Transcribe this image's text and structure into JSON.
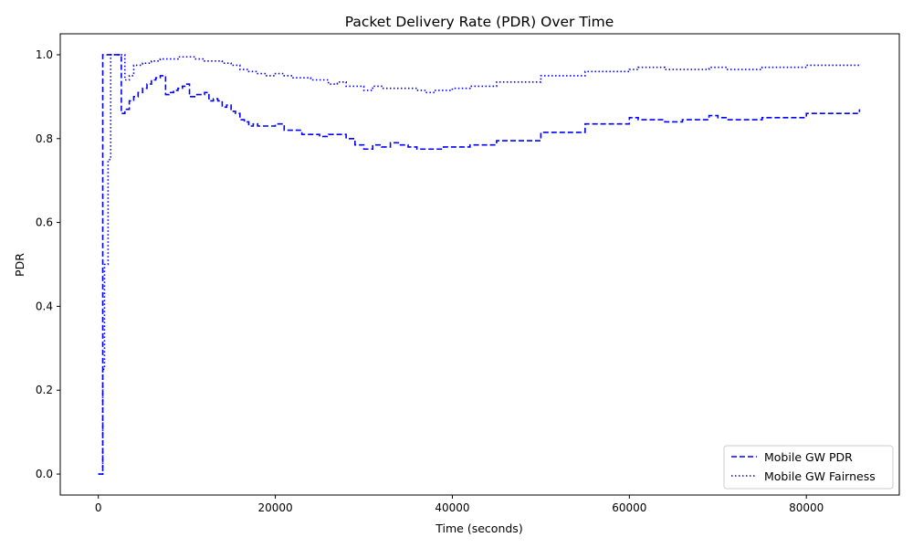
{
  "chart_data": {
    "type": "line",
    "title": "Packet Delivery Rate (PDR) Over Time",
    "xlabel": "Time (seconds)",
    "ylabel": "PDR",
    "xlim": [
      -4300,
      90500
    ],
    "ylim": [
      -0.05,
      1.05
    ],
    "xticks": [
      0,
      20000,
      40000,
      60000,
      80000
    ],
    "yticks": [
      0.0,
      0.2,
      0.4,
      0.6,
      0.8,
      1.0
    ],
    "xtick_labels": [
      "0",
      "20000",
      "40000",
      "60000",
      "80000"
    ],
    "ytick_labels": [
      "0.0",
      "0.2",
      "0.4",
      "0.6",
      "0.8",
      "1.0"
    ],
    "grid": false,
    "legend_position": "lower right",
    "step": true,
    "series": [
      {
        "name": "Mobile GW PDR",
        "color": "#0000ff",
        "style": "dashed",
        "x": [
          0,
          300,
          500,
          700,
          1000,
          1500,
          2000,
          2400,
          2600,
          3000,
          3500,
          4000,
          4500,
          5000,
          5500,
          6000,
          6500,
          7000,
          7300,
          7600,
          8000,
          8500,
          9000,
          9500,
          10000,
          10300,
          11000,
          12000,
          12500,
          13000,
          13500,
          14000,
          14500,
          15000,
          15500,
          16000,
          16500,
          17000,
          17500,
          18000,
          19000,
          20000,
          21000,
          22000,
          23000,
          24000,
          25000,
          26000,
          27000,
          28000,
          29000,
          30000,
          31000,
          32000,
          33000,
          34000,
          35000,
          36000,
          37000,
          38000,
          39000,
          40000,
          42000,
          45000,
          50000,
          55000,
          60000,
          61000,
          62000,
          64000,
          66000,
          69000,
          70000,
          71000,
          75000,
          80000,
          86000
        ],
        "values": [
          0.0,
          0.0,
          1.0,
          1.0,
          1.0,
          1.0,
          1.0,
          1.0,
          0.86,
          0.87,
          0.89,
          0.9,
          0.91,
          0.92,
          0.93,
          0.94,
          0.945,
          0.95,
          0.95,
          0.905,
          0.91,
          0.915,
          0.92,
          0.925,
          0.93,
          0.9,
          0.905,
          0.91,
          0.89,
          0.895,
          0.89,
          0.875,
          0.88,
          0.865,
          0.86,
          0.845,
          0.84,
          0.83,
          0.835,
          0.83,
          0.83,
          0.835,
          0.82,
          0.82,
          0.81,
          0.81,
          0.805,
          0.81,
          0.81,
          0.8,
          0.785,
          0.775,
          0.785,
          0.78,
          0.79,
          0.785,
          0.78,
          0.775,
          0.775,
          0.775,
          0.78,
          0.78,
          0.785,
          0.795,
          0.815,
          0.835,
          0.85,
          0.845,
          0.845,
          0.84,
          0.845,
          0.855,
          0.85,
          0.845,
          0.85,
          0.86,
          0.87
        ]
      },
      {
        "name": "Mobile GW Fairness",
        "color": "#0000ff",
        "style": "dotted",
        "x": [
          0,
          300,
          500,
          700,
          900,
          1100,
          1400,
          1700,
          2000,
          2500,
          3000,
          3500,
          4000,
          5000,
          6000,
          7000,
          8000,
          9000,
          10000,
          11000,
          12000,
          13000,
          14000,
          15000,
          16000,
          17000,
          18000,
          19000,
          20000,
          21000,
          22000,
          24000,
          26000,
          27000,
          28000,
          30000,
          31000,
          32000,
          34000,
          36000,
          37000,
          38000,
          40000,
          42000,
          45000,
          50000,
          55000,
          60000,
          61000,
          64000,
          66000,
          69000,
          70000,
          71000,
          75000,
          80000,
          86000
        ],
        "values": [
          0.0,
          0.0,
          0.25,
          0.5,
          0.5,
          0.75,
          1.0,
          1.0,
          1.0,
          1.0,
          0.94,
          0.95,
          0.975,
          0.98,
          0.985,
          0.99,
          0.99,
          0.995,
          0.995,
          0.99,
          0.985,
          0.985,
          0.98,
          0.975,
          0.965,
          0.96,
          0.955,
          0.95,
          0.955,
          0.95,
          0.945,
          0.94,
          0.93,
          0.935,
          0.925,
          0.915,
          0.925,
          0.92,
          0.92,
          0.915,
          0.91,
          0.915,
          0.92,
          0.925,
          0.935,
          0.95,
          0.96,
          0.965,
          0.97,
          0.965,
          0.965,
          0.97,
          0.97,
          0.965,
          0.97,
          0.975,
          0.978
        ]
      }
    ]
  }
}
